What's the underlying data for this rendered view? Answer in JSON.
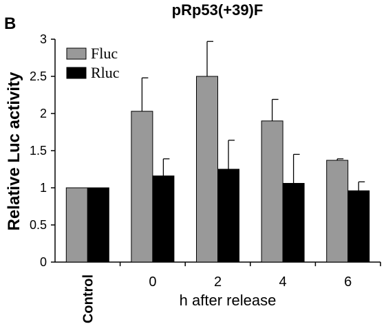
{
  "panel_label": "B",
  "chart_data": {
    "type": "bar",
    "title": "pRp53(+39)F",
    "xlabel": "h after release",
    "ylabel": "Relative Luc activity",
    "categories": [
      "Control",
      "0",
      "2",
      "4",
      "6"
    ],
    "ylim": [
      0,
      3
    ],
    "yticks": [
      "0",
      "0.5",
      "1",
      "1.5",
      "2",
      "2.5",
      "3"
    ],
    "grid": false,
    "legend_position": "top-left",
    "series": [
      {
        "name": "Fluc",
        "color": "#999999",
        "values": [
          1.0,
          2.03,
          2.5,
          1.9,
          1.37
        ],
        "errors": [
          0,
          0.45,
          0.47,
          0.29,
          0.02
        ]
      },
      {
        "name": "Rluc",
        "color": "#000000",
        "values": [
          1.0,
          1.16,
          1.25,
          1.06,
          0.96
        ],
        "errors": [
          0,
          0.23,
          0.39,
          0.39,
          0.12
        ]
      }
    ]
  }
}
